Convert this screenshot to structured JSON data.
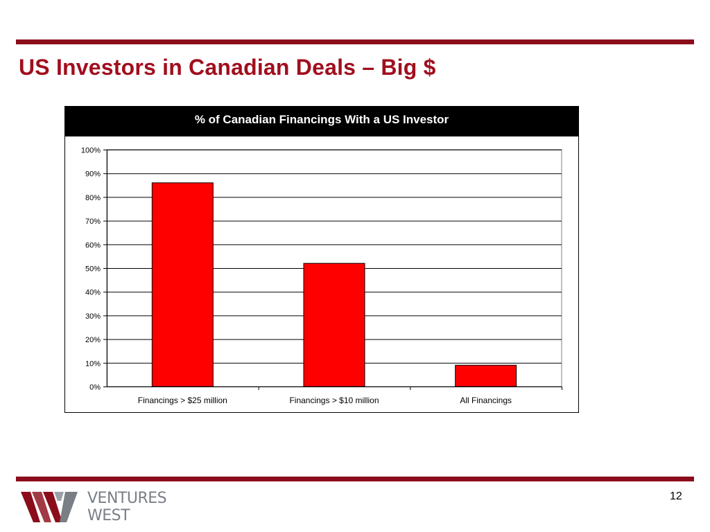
{
  "slide": {
    "title": "US Investors in Canadian Deals – Big $",
    "page_number": "12",
    "logo": {
      "line1": "VENTURES",
      "line2": "WEST"
    },
    "accent_color": "#8b0d1c",
    "title_color": "#a00f1e"
  },
  "chart_data": {
    "type": "bar",
    "title": "% of Canadian Financings With a US Investor",
    "categories": [
      "Financings > $25 million",
      "Financings > $10 million",
      "All Financings"
    ],
    "values": [
      86,
      52,
      9
    ],
    "ylim": [
      0,
      100
    ],
    "yticks": [
      "0%",
      "10%",
      "20%",
      "30%",
      "40%",
      "50%",
      "60%",
      "70%",
      "80%",
      "90%",
      "100%"
    ],
    "y_unit": "%",
    "bar_color": "#ff0000",
    "grid": true,
    "legend": "none"
  }
}
